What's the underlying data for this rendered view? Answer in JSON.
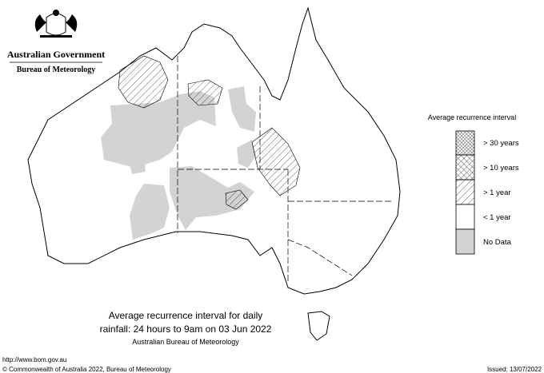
{
  "header": {
    "government": "Australian Government",
    "bureau": "Bureau of Meteorology"
  },
  "legend": {
    "title": "Average recurrence interval",
    "items": [
      {
        "label": "> 30 years"
      },
      {
        "label": "> 10 years"
      },
      {
        "label": "> 1 year"
      },
      {
        "label": "< 1 year"
      },
      {
        "label": "No Data"
      }
    ]
  },
  "caption": {
    "lines": [
      "Average recurrence interval for daily",
      "rainfall: 24 hours to 9am on 03 Jun 2022",
      "Australian Bureau of Meteorology"
    ]
  },
  "footer": {
    "url": "http://www.bom.gov.au",
    "copyright": "© Commonwealth of Australia 2022, Bureau of Meteorology",
    "issued": "Issued: 13/07/2022"
  }
}
